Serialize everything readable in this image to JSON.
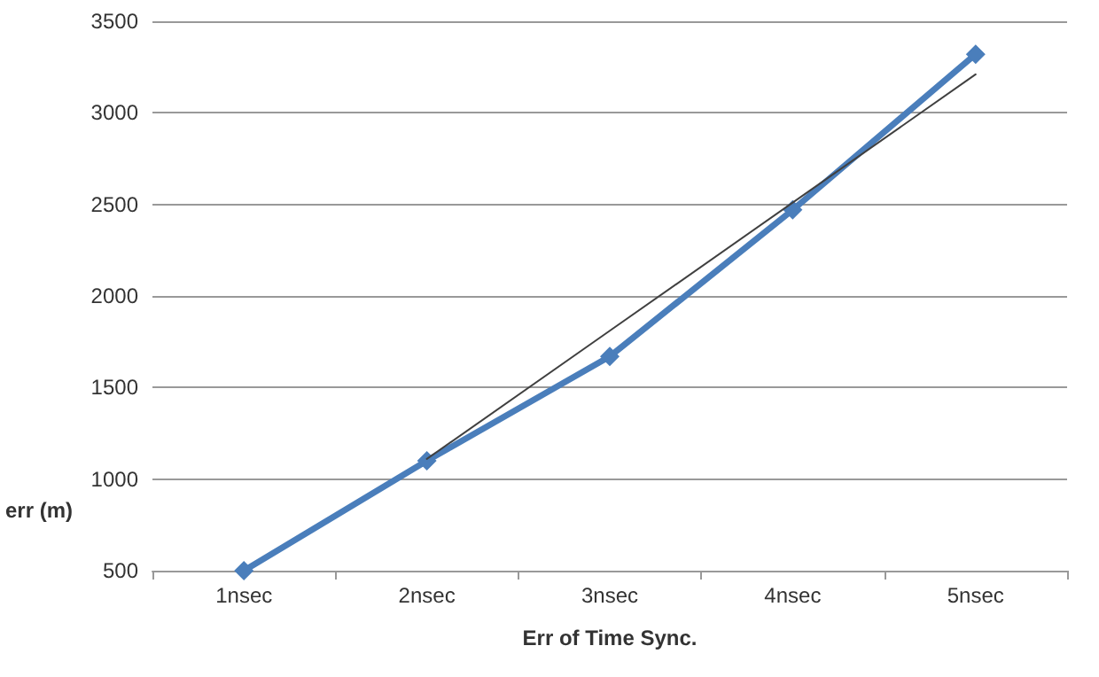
{
  "chart_data": {
    "type": "line",
    "xlabel": "Err of Time Sync.",
    "ylabel": "err (m)",
    "categories": [
      "1nsec",
      "2nsec",
      "3nsec",
      "4nsec",
      "5nsec"
    ],
    "series": [
      {
        "color": "#4a7ebb",
        "values": [
          500,
          1100,
          1670,
          2470,
          3320
        ],
        "marker": "diamond"
      },
      {
        "type": "line",
        "color": "#404040",
        "values": [
          null,
          1110,
          1810,
          2510,
          3210
        ],
        "marker": "none"
      }
    ],
    "ylim": [
      500,
      3500
    ],
    "yticks": [
      500,
      1000,
      1500,
      2000,
      2500,
      3000,
      3500
    ],
    "grid": "y"
  }
}
